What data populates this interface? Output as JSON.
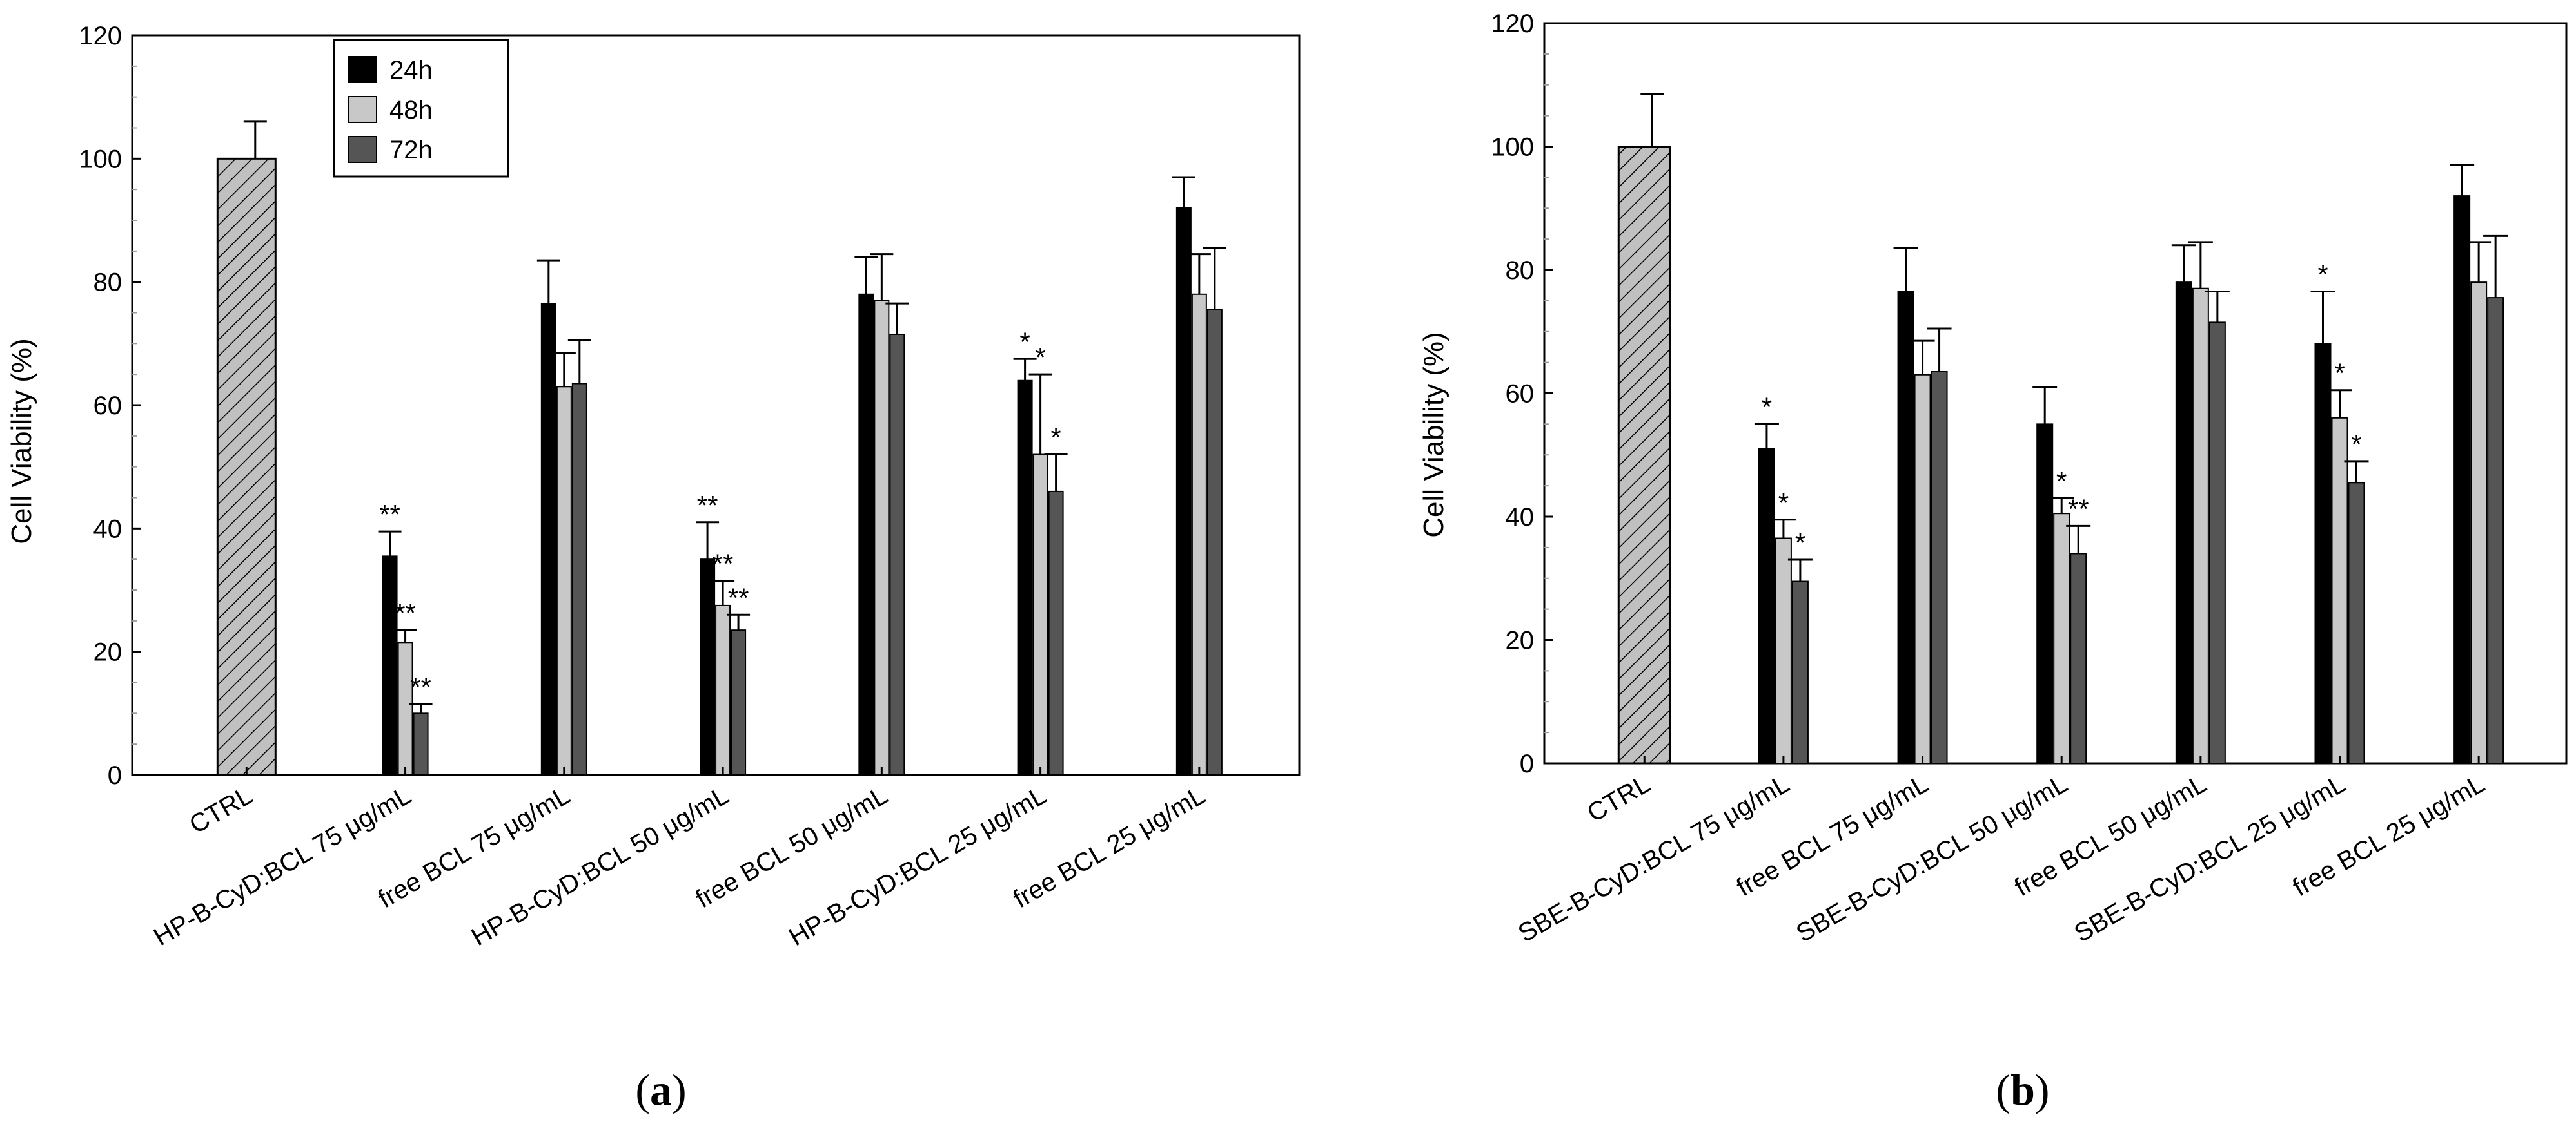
{
  "colors": {
    "24h": "#000000",
    "48h": "#c8c8c8",
    "72h": "#555555",
    "ctrl": "#c0c0c0",
    "axis": "#000000"
  },
  "legend": {
    "entries": [
      "24h",
      "48h",
      "72h"
    ]
  },
  "chart_data": [
    {
      "type": "bar",
      "panel": "(a)",
      "panel_letter": "a",
      "ylabel": "Cell Viability (%)",
      "xlabel": "",
      "ylim": [
        0,
        120
      ],
      "yticks": [
        0,
        20,
        40,
        60,
        80,
        100,
        120
      ],
      "legend_position": "top-left",
      "categories": [
        "CTRL",
        "HP-B-CyD:BCL 75 μg/mL",
        "free BCL 75 μg/mL",
        "HP-B-CyD:BCL 50 μg/mL",
        "free BCL 50 μg/mL",
        "HP-B-CyD:BCL 25 μg/mL",
        "free BCL 25 μg/mL"
      ],
      "ctrl": {
        "value": 100,
        "error": 6
      },
      "series": [
        {
          "name": "24h",
          "values": [
            null,
            35.5,
            76.5,
            35.0,
            78.0,
            64.0,
            92.0
          ],
          "errors": [
            null,
            4.0,
            7.0,
            6.0,
            6.0,
            3.5,
            5.0
          ],
          "annotations": [
            "",
            "**",
            "",
            "**",
            "",
            "*",
            ""
          ]
        },
        {
          "name": "48h",
          "values": [
            null,
            21.5,
            63.0,
            27.5,
            77.0,
            52.0,
            78.0
          ],
          "errors": [
            null,
            2.0,
            5.5,
            4.0,
            7.5,
            13.0,
            6.5
          ],
          "annotations": [
            "",
            "**",
            "",
            "**",
            "",
            "*",
            ""
          ]
        },
        {
          "name": "72h",
          "values": [
            null,
            10.0,
            63.5,
            23.5,
            71.5,
            46.0,
            75.5
          ],
          "errors": [
            null,
            1.5,
            7.0,
            2.5,
            5.0,
            6.0,
            10.0
          ],
          "annotations": [
            "",
            "**",
            "",
            "**",
            "",
            "*",
            ""
          ]
        }
      ]
    },
    {
      "type": "bar",
      "panel": "(b)",
      "panel_letter": "b",
      "ylabel": "Cell Viability (%)",
      "xlabel": "",
      "ylim": [
        0,
        120
      ],
      "yticks": [
        0,
        20,
        40,
        60,
        80,
        100,
        120
      ],
      "categories": [
        "CTRL",
        "SBE-B-CyD:BCL 75 μg/mL",
        "free BCL 75 μg/mL",
        "SBE-B-CyD:BCL 50 μg/mL",
        "free BCL 50 μg/mL",
        "SBE-B-CyD:BCL 25 μg/mL",
        "free BCL 25 μg/mL"
      ],
      "ctrl": {
        "value": 100,
        "error": 8.5
      },
      "series": [
        {
          "name": "24h",
          "values": [
            null,
            51.0,
            76.5,
            55.0,
            78.0,
            68.0,
            92.0
          ],
          "errors": [
            null,
            4.0,
            7.0,
            6.0,
            6.0,
            8.5,
            5.0
          ],
          "annotations": [
            "",
            "*",
            "",
            "",
            "",
            "*",
            ""
          ]
        },
        {
          "name": "48h",
          "values": [
            null,
            36.5,
            63.0,
            40.5,
            77.0,
            56.0,
            78.0
          ],
          "errors": [
            null,
            3.0,
            5.5,
            2.5,
            7.5,
            4.5,
            6.5
          ],
          "annotations": [
            "",
            "*",
            "",
            "*",
            "",
            "*",
            ""
          ]
        },
        {
          "name": "72h",
          "values": [
            null,
            29.5,
            63.5,
            34.0,
            71.5,
            45.5,
            75.5
          ],
          "errors": [
            null,
            3.5,
            7.0,
            4.5,
            5.0,
            3.5,
            10.0
          ],
          "annotations": [
            "",
            "*",
            "",
            "**",
            "",
            "*",
            ""
          ]
        }
      ]
    }
  ]
}
